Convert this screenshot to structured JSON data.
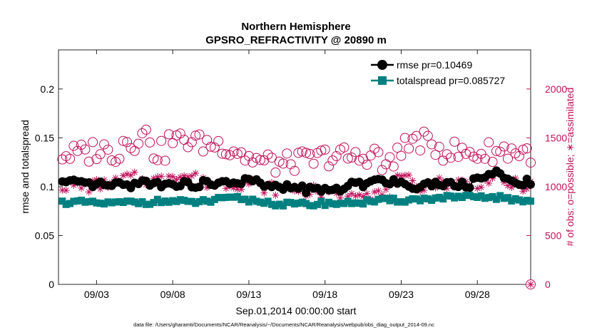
{
  "chart_data": {
    "type": "line",
    "title": "Northern Hemisphere",
    "subtitle": "GPSRO_REFRACTIVITY @ 20890 m",
    "xlabel": "Sep.01,2014 00:00:00 start",
    "ylabel_left": "rmse and totalspread",
    "ylabel_right": "# of obs: o=possible; ∗=assimilated",
    "footnote": "data file: /Users/gharamti/Documents/NCAR/Reanalysis/~/Documents/NCAR/Reanalysis/webpub/obs_diag_output_2014-09.nc",
    "x_range_days": [
      0.5,
      31.5
    ],
    "x_ticks": [
      {
        "day": 3,
        "label": "09/03"
      },
      {
        "day": 8,
        "label": "09/08"
      },
      {
        "day": 13,
        "label": "09/13"
      },
      {
        "day": 18,
        "label": "09/18"
      },
      {
        "day": 23,
        "label": "09/23"
      },
      {
        "day": 28,
        "label": "09/28"
      }
    ],
    "ylim_left": [
      0,
      0.24
    ],
    "y_ticks_left": [
      "0",
      "0.05",
      "0.1",
      "0.15",
      "0.2"
    ],
    "ylim_right": [
      0,
      2400
    ],
    "y_ticks_right": [
      "0",
      "500",
      "1000",
      "1500",
      "2000"
    ],
    "colors": {
      "rmse": "#000000",
      "totalspread": "#008080",
      "obs": "#c0105a"
    },
    "legend": {
      "position": "top-right",
      "rmse_label": "rmse pr=0.10469",
      "spread_label": "totalspread pr=0.085727"
    },
    "series": [
      {
        "name": "rmse pr=0.10469",
        "axis": "left",
        "start_day": 0.75,
        "step_days": 0.25,
        "points_per_day": 4,
        "daily_means": [
          0.104,
          0.102,
          0.102,
          0.101,
          0.102,
          0.104,
          0.103,
          0.103,
          0.102,
          0.103,
          0.103,
          0.105,
          0.106,
          0.101,
          0.099,
          0.099,
          0.097,
          0.096,
          0.098,
          0.102,
          0.107,
          0.106,
          0.103,
          0.101,
          0.103,
          0.104,
          0.102,
          0.109,
          0.113,
          0.106,
          0.105
        ]
      },
      {
        "name": "totalspread pr=0.085727",
        "axis": "left",
        "start_day": 0.75,
        "step_days": 0.25,
        "points_per_day": 4,
        "daily_means": [
          0.084,
          0.084,
          0.083,
          0.083,
          0.084,
          0.084,
          0.085,
          0.085,
          0.084,
          0.085,
          0.087,
          0.088,
          0.086,
          0.084,
          0.082,
          0.082,
          0.082,
          0.083,
          0.083,
          0.084,
          0.085,
          0.086,
          0.086,
          0.087,
          0.088,
          0.089,
          0.089,
          0.089,
          0.089,
          0.087,
          0.086
        ]
      },
      {
        "name": "possible",
        "marker": "o",
        "axis": "right",
        "start_day": 0.75,
        "step_days": 0.25,
        "points_per_day": 4,
        "daily_means": [
          1330,
          1340,
          1380,
          1350,
          1470,
          1520,
          1360,
          1470,
          1480,
          1440,
          1430,
          1380,
          1290,
          1250,
          1230,
          1260,
          1270,
          1310,
          1310,
          1290,
          1330,
          1210,
          1410,
          1470,
          1410,
          1370,
          1340,
          1340,
          1360,
          1370,
          1350
        ]
      },
      {
        "name": "assimilated",
        "marker": "*",
        "axis": "right",
        "start_day": 0.75,
        "step_days": 0.25,
        "points_per_day": 4,
        "daily_means": [
          1010,
          1000,
          1020,
          1040,
          1090,
          1060,
          1070,
          1130,
          1110,
          1040,
          1030,
          1030,
          1040,
          990,
          970,
          980,
          960,
          930,
          930,
          960,
          930,
          920,
          1060,
          1010,
          1040,
          1040,
          1040,
          1040,
          1080,
          1030,
          1010
        ]
      }
    ],
    "extra_marker": {
      "day": 31.5,
      "right_value": 0,
      "symbols": "o*"
    }
  }
}
